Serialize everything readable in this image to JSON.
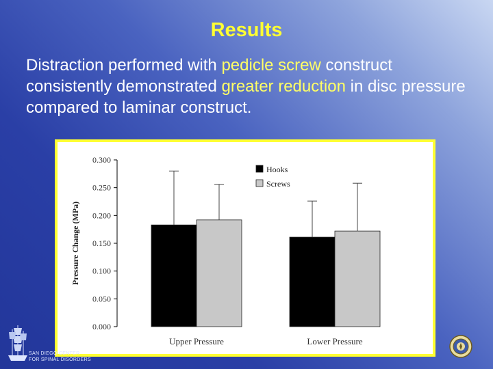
{
  "slide": {
    "title": "Results",
    "body": {
      "p1": "Distraction performed with ",
      "h1": "pedicle screw",
      "p2": " construct consistently demonstrated ",
      "h2": "greater reduction",
      "p3": " in disc pressure compared to laminar construct."
    }
  },
  "logo": {
    "line1": "SAN DIEGO CENTER",
    "line2": "FOR SPINAL DISORDERS"
  },
  "colors": {
    "title": "#ffff33",
    "highlight": "#ffff66",
    "hooks": "#000000",
    "screws": "#c8c8c8",
    "frame": "#ffff33"
  },
  "icons": {
    "logo": "ship-icon",
    "seal": "seal-icon"
  },
  "chart_data": {
    "type": "bar",
    "categories": [
      "Upper Pressure",
      "Lower Pressure"
    ],
    "series": [
      {
        "name": "Hooks",
        "values": [
          0.183,
          0.161
        ],
        "error_upper": [
          0.28,
          0.226
        ],
        "color": "#000000"
      },
      {
        "name": "Screws",
        "values": [
          0.192,
          0.172
        ],
        "error_upper": [
          0.256,
          0.258
        ],
        "color": "#c8c8c8"
      }
    ],
    "ylabel": "Pressure Change (MPa)",
    "xlabel": "",
    "ylim": [
      0,
      0.3
    ],
    "yticks": [
      "0.000",
      "0.050",
      "0.100",
      "0.150",
      "0.200",
      "0.250",
      "0.300"
    ],
    "legend_position": "top-right",
    "grid": false
  }
}
